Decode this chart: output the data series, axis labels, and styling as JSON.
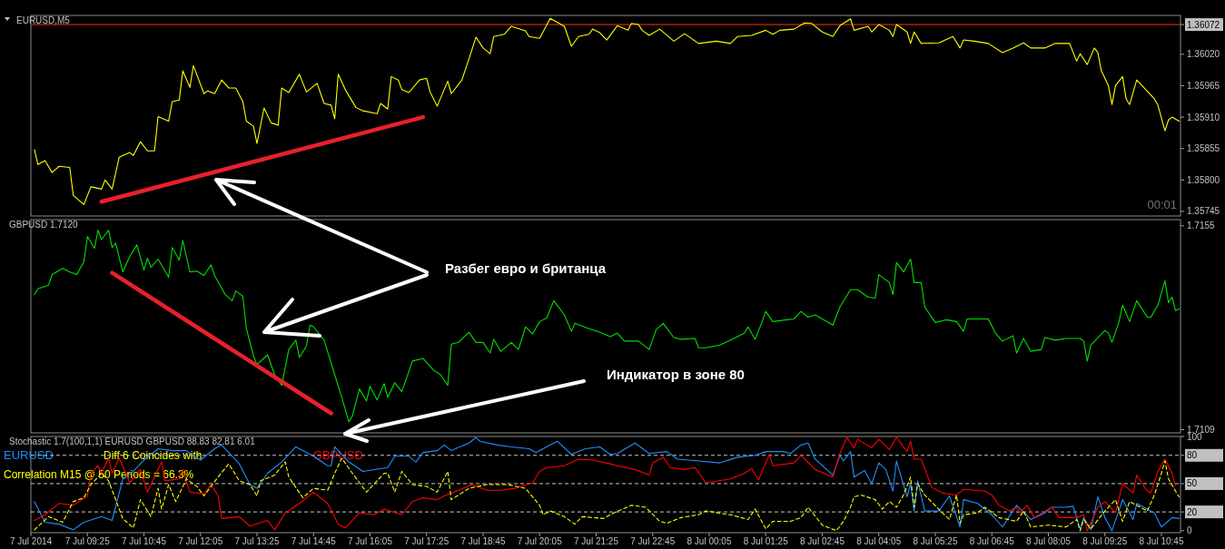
{
  "chart_data": [
    {
      "type": "line",
      "title": "EURUSD,M5",
      "xlim": [
        "2014-07-07T08:05",
        "2014-07-08T11:12"
      ],
      "ylim": [
        1.35737,
        1.36088
      ],
      "tick_labels": "y",
      "yticks": [
        1.35745,
        {
          "value": 1.358,
          "label": "1.35800"
        },
        1.35855,
        {
          "value": 1.3591,
          "label": "1.35910"
        },
        1.35965,
        {
          "value": 1.3602,
          "label": "1.36020"
        },
        1.36072
      ],
      "ref_lines": [
        {
          "axis": "y",
          "value": 1.36072,
          "color": "#ff3300"
        }
      ],
      "annotations": [
        "00:01"
      ],
      "series": [
        {
          "color": "#ffff00",
          "x": [
            "2014-07-07T08:10",
            "2014-07-07T08:15",
            "2014-07-07T08:25",
            "2014-07-07T08:35",
            "2014-07-07T08:45",
            "2014-07-07T09:00",
            "2014-07-07T09:05",
            "2014-07-07T09:20",
            "2014-07-07T09:30",
            "2014-07-07T09:45",
            "2014-07-07T09:50",
            "2014-07-07T10:00",
            "2014-07-07T10:10",
            "2014-07-07T10:25",
            "2014-07-07T10:30",
            "2014-07-07T10:40",
            "2014-07-07T10:50",
            "2014-07-07T11:00",
            "2014-07-07T11:05",
            "2014-07-07T11:20",
            "2014-07-07T11:25",
            "2014-07-07T11:35",
            "2014-07-07T11:40",
            "2014-07-07T11:50",
            "2014-07-07T11:55",
            "2014-07-07T12:10",
            "2014-07-07T12:15",
            "2014-07-07T12:25",
            "2014-07-07T12:35",
            "2014-07-07T12:45",
            "2014-07-07T12:55",
            "2014-07-07T13:05",
            "2014-07-07T13:10",
            "2014-07-07T13:20",
            "2014-07-07T13:25",
            "2014-07-07T13:35",
            "2014-07-07T13:45",
            "2014-07-07T13:55",
            "2014-07-07T14:00",
            "2014-07-07T14:10",
            "2014-07-07T14:25",
            "2014-07-07T14:35",
            "2014-07-07T14:50",
            "2014-07-07T15:00",
            "2014-07-07T15:10",
            "2014-07-07T15:15",
            "2014-07-07T15:20",
            "2014-07-07T15:30",
            "2014-07-07T15:45",
            "2014-07-07T15:55",
            "2014-07-07T16:15",
            "2014-07-07T16:20",
            "2014-07-07T16:30",
            "2014-07-07T16:35",
            "2014-07-07T16:45",
            "2014-07-07T16:50",
            "2014-07-07T17:00",
            "2014-07-07T17:15",
            "2014-07-07T17:25",
            "2014-07-07T17:30",
            "2014-07-07T17:40",
            "2014-07-07T17:55",
            "2014-07-07T18:00",
            "2014-07-07T18:15",
            "2014-07-07T18:25",
            "2014-07-07T18:35",
            "2014-07-07T18:45",
            "2014-07-07T18:55",
            "2014-07-07T19:00",
            "2014-07-07T19:15",
            "2014-07-07T19:25",
            "2014-07-07T19:45",
            "2014-07-07T19:50",
            "2014-07-07T20:05",
            "2014-07-07T20:20",
            "2014-07-07T20:40",
            "2014-07-07T20:50",
            "2014-07-07T21:00",
            "2014-07-07T21:15",
            "2014-07-07T21:20",
            "2014-07-07T21:30",
            "2014-07-07T21:40",
            "2014-07-07T21:55",
            "2014-07-07T22:10",
            "2014-07-07T22:15",
            "2014-07-07T22:25",
            "2014-07-07T22:30",
            "2014-07-07T22:40",
            "2014-07-07T22:55",
            "2014-07-07T23:15",
            "2014-07-07T23:30",
            "2014-07-07T23:50",
            "2014-07-08T00:15",
            "2014-07-08T00:35",
            "2014-07-08T00:45",
            "2014-07-08T01:05",
            "2014-07-08T01:25",
            "2014-07-08T01:35",
            "2014-07-08T01:45",
            "2014-07-08T02:05",
            "2014-07-08T02:20",
            "2014-07-08T02:30",
            "2014-07-08T02:45",
            "2014-07-08T03:00",
            "2014-07-08T03:10",
            "2014-07-08T03:25",
            "2014-07-08T03:30",
            "2014-07-08T03:50",
            "2014-07-08T03:55",
            "2014-07-08T04:05",
            "2014-07-08T04:20",
            "2014-07-08T04:25",
            "2014-07-08T04:30",
            "2014-07-08T04:45",
            "2014-07-08T04:50",
            "2014-07-08T04:55",
            "2014-07-08T05:05",
            "2014-07-08T05:30",
            "2014-07-08T05:50",
            "2014-07-08T06:00",
            "2014-07-08T06:05",
            "2014-07-08T06:20",
            "2014-07-08T06:40",
            "2014-07-08T07:00",
            "2014-07-08T07:15",
            "2014-07-08T07:30",
            "2014-07-08T07:40",
            "2014-07-08T08:00",
            "2014-07-08T08:15",
            "2014-07-08T08:35",
            "2014-07-08T08:45",
            "2014-07-08T08:50",
            "2014-07-08T09:00",
            "2014-07-08T09:10",
            "2014-07-08T09:15",
            "2014-07-08T09:20",
            "2014-07-08T09:30",
            "2014-07-08T09:35",
            "2014-07-08T09:40",
            "2014-07-08T09:50",
            "2014-07-08T09:55",
            "2014-07-08T10:00",
            "2014-07-08T10:10",
            "2014-07-08T10:35",
            "2014-07-08T10:40",
            "2014-07-08T10:50",
            "2014-07-08T10:55",
            "2014-07-08T11:00",
            "2014-07-08T11:10"
          ],
          "values": [
            1.35853,
            1.35827,
            1.35834,
            1.35813,
            1.35824,
            1.35822,
            1.35773,
            1.35757,
            1.35788,
            1.35784,
            1.358,
            1.35784,
            1.3584,
            1.35848,
            1.35843,
            1.35867,
            1.35851,
            1.35851,
            1.35911,
            1.35903,
            1.35937,
            1.3594,
            1.35991,
            1.35962,
            1.36,
            1.35951,
            1.35956,
            1.35951,
            1.35975,
            1.35961,
            1.35961,
            1.35937,
            1.35903,
            1.35894,
            1.35864,
            1.35926,
            1.359,
            1.35896,
            1.35961,
            1.35953,
            1.35985,
            1.35954,
            1.35969,
            1.35934,
            1.35931,
            1.35907,
            1.35985,
            1.35958,
            1.35927,
            1.35921,
            1.35916,
            1.35934,
            1.35924,
            1.35981,
            1.35975,
            1.35958,
            1.35953,
            1.35975,
            1.35978,
            1.35954,
            1.35929,
            1.35973,
            1.35951,
            1.35975,
            1.36012,
            1.3605,
            1.36031,
            1.36021,
            1.36051,
            1.36055,
            1.36069,
            1.36061,
            1.36051,
            1.36048,
            1.36083,
            1.36069,
            1.36034,
            1.36051,
            1.36055,
            1.36064,
            1.36058,
            1.36045,
            1.3607,
            1.36062,
            1.36074,
            1.36072,
            1.36062,
            1.36053,
            1.36064,
            1.36043,
            1.36056,
            1.36039,
            1.36043,
            1.36039,
            1.36051,
            1.36053,
            1.36062,
            1.36055,
            1.36062,
            1.36064,
            1.36075,
            1.36074,
            1.36059,
            1.36051,
            1.3607,
            1.36082,
            1.36062,
            1.36069,
            1.36059,
            1.36072,
            1.36062,
            1.36051,
            1.36072,
            1.36059,
            1.36039,
            1.36059,
            1.36039,
            1.3604,
            1.36051,
            1.36031,
            1.36045,
            1.36043,
            1.36039,
            1.36023,
            1.36031,
            1.3604,
            1.36031,
            1.36031,
            1.36039,
            1.36039,
            1.36008,
            1.36021,
            1.36002,
            1.36031,
            1.36023,
            1.35991,
            1.35965,
            1.35932,
            1.35965,
            1.35981,
            1.35942,
            1.35932,
            1.35975,
            1.35942,
            1.35931,
            1.35886,
            1.35905,
            1.3591,
            1.35903
          ]
        },
        {
          "color": "#e8202a",
          "x": [
            "2014-07-07T09:45",
            "2014-07-07T17:20"
          ],
          "values": [
            1.35762,
            1.3591
          ]
        }
      ]
    },
    {
      "type": "line",
      "title": "GBPUSD 1.7120",
      "xlim": [
        "2014-07-07T08:05",
        "2014-07-08T11:12"
      ],
      "ylim": [
        1.71083,
        1.71564
      ],
      "tick_labels": "y",
      "yticks": [
        1.7109,
        1.7155
      ],
      "annotations": [
        "Разбег евро и британца",
        "Индикатор в зоне 80"
      ],
      "series": [
        {
          "color": "#00e000",
          "x": [
            "2014-07-07T08:10",
            "2014-07-07T08:15",
            "2014-07-07T08:30",
            "2014-07-07T08:35",
            "2014-07-07T08:50",
            "2014-07-07T09:00",
            "2014-07-07T09:10",
            "2014-07-07T09:20",
            "2014-07-07T09:25",
            "2014-07-07T09:35",
            "2014-07-07T09:40",
            "2014-07-07T09:45",
            "2014-07-07T09:55",
            "2014-07-07T10:00",
            "2014-07-07T10:05",
            "2014-07-07T10:15",
            "2014-07-07T10:25",
            "2014-07-07T10:35",
            "2014-07-07T10:45",
            "2014-07-07T10:50",
            "2014-07-07T10:55",
            "2014-07-07T11:05",
            "2014-07-07T11:20",
            "2014-07-07T11:25",
            "2014-07-07T11:35",
            "2014-07-07T11:40",
            "2014-07-07T11:50",
            "2014-07-07T12:00",
            "2014-07-07T12:10",
            "2014-07-07T12:20",
            "2014-07-07T12:25",
            "2014-07-07T12:40",
            "2014-07-07T12:50",
            "2014-07-07T12:55",
            "2014-07-07T13:05",
            "2014-07-07T13:10",
            "2014-07-07T13:20",
            "2014-07-07T13:25",
            "2014-07-07T13:40",
            "2014-07-07T13:50",
            "2014-07-07T14:00",
            "2014-07-07T14:10",
            "2014-07-07T14:20",
            "2014-07-07T14:25",
            "2014-07-07T14:35",
            "2014-07-07T14:40",
            "2014-07-07T14:45",
            "2014-07-07T15:00",
            "2014-07-07T15:15",
            "2014-07-07T15:25",
            "2014-07-07T15:35",
            "2014-07-07T15:40",
            "2014-07-07T15:50",
            "2014-07-07T16:00",
            "2014-07-07T16:05",
            "2014-07-07T16:15",
            "2014-07-07T16:25",
            "2014-07-07T16:30",
            "2014-07-07T16:40",
            "2014-07-07T16:50",
            "2014-07-07T17:05",
            "2014-07-07T17:20",
            "2014-07-07T17:35",
            "2014-07-07T17:45",
            "2014-07-07T17:55",
            "2014-07-07T18:00",
            "2014-07-07T18:10",
            "2014-07-07T18:25",
            "2014-07-07T18:35",
            "2014-07-07T18:45",
            "2014-07-07T18:55",
            "2014-07-07T19:00",
            "2014-07-07T19:10",
            "2014-07-07T19:25",
            "2014-07-07T19:35",
            "2014-07-07T19:45",
            "2014-07-07T19:55",
            "2014-07-07T20:05",
            "2014-07-07T20:15",
            "2014-07-07T20:25",
            "2014-07-07T20:40",
            "2014-07-07T20:50",
            "2014-07-07T20:55",
            "2014-07-07T21:15",
            "2014-07-07T21:30",
            "2014-07-07T21:45",
            "2014-07-07T21:55",
            "2014-07-07T22:05",
            "2014-07-07T22:25",
            "2014-07-07T22:40",
            "2014-07-07T22:50",
            "2014-07-07T23:00",
            "2014-07-07T23:15",
            "2014-07-07T23:25",
            "2014-07-07T23:45",
            "2014-07-07T23:50",
            "2014-07-08T00:00",
            "2014-07-08T00:20",
            "2014-07-08T00:40",
            "2014-07-08T00:55",
            "2014-07-08T01:00",
            "2014-07-08T01:10",
            "2014-07-08T01:20",
            "2014-07-08T01:25",
            "2014-07-08T01:35",
            "2014-07-08T01:55",
            "2014-07-08T02:05",
            "2014-07-08T02:15",
            "2014-07-08T02:25",
            "2014-07-08T02:35",
            "2014-07-08T03:00",
            "2014-07-08T03:10",
            "2014-07-08T03:25",
            "2014-07-08T03:35",
            "2014-07-08T03:50",
            "2014-07-08T04:00",
            "2014-07-08T04:05",
            "2014-07-08T04:20",
            "2014-07-08T04:25",
            "2014-07-08T04:30",
            "2014-07-08T04:40",
            "2014-07-08T04:50",
            "2014-07-08T04:55",
            "2014-07-08T05:05",
            "2014-07-08T05:10",
            "2014-07-08T05:25",
            "2014-07-08T05:40",
            "2014-07-08T05:55",
            "2014-07-08T06:05",
            "2014-07-08T06:10",
            "2014-07-08T06:40",
            "2014-07-08T06:50",
            "2014-07-08T07:00",
            "2014-07-08T07:15",
            "2014-07-08T07:20",
            "2014-07-08T07:30",
            "2014-07-08T07:40",
            "2014-07-08T07:55",
            "2014-07-08T08:00",
            "2014-07-08T08:15",
            "2014-07-08T08:30",
            "2014-07-08T08:50",
            "2014-07-08T08:55",
            "2014-07-08T09:00",
            "2014-07-08T09:05",
            "2014-07-08T09:25",
            "2014-07-08T09:30",
            "2014-07-08T09:35",
            "2014-07-08T09:45",
            "2014-07-08T09:50",
            "2014-07-08T10:00",
            "2014-07-08T10:10",
            "2014-07-08T10:25",
            "2014-07-08T10:30",
            "2014-07-08T10:40",
            "2014-07-08T10:50",
            "2014-07-08T10:55",
            "2014-07-08T11:00",
            "2014-07-08T11:05",
            "2014-07-08T11:10"
          ],
          "values": [
            1.71395,
            1.71408,
            1.71416,
            1.7144,
            1.71454,
            1.71446,
            1.7144,
            1.71469,
            1.71526,
            1.71499,
            1.7154,
            1.71519,
            1.7154,
            1.71501,
            1.71511,
            1.71446,
            1.71481,
            1.71507,
            1.7145,
            1.71477,
            1.71456,
            1.71475,
            1.71434,
            1.71501,
            1.71473,
            1.71517,
            1.71446,
            1.71448,
            1.71438,
            1.71462,
            1.71438,
            1.71395,
            1.71381,
            1.71403,
            1.71391,
            1.71318,
            1.71257,
            1.71237,
            1.71259,
            1.71214,
            1.7119,
            1.71271,
            1.71292,
            1.71253,
            1.71279,
            1.71326,
            1.71322,
            1.71292,
            1.71214,
            1.71163,
            1.71108,
            1.71121,
            1.71182,
            1.71155,
            1.71188,
            1.71157,
            1.71194,
            1.71163,
            1.71196,
            1.71176,
            1.71245,
            1.71251,
            1.71224,
            1.71214,
            1.7119,
            1.71283,
            1.71287,
            1.7131,
            1.71287,
            1.71287,
            1.71263,
            1.71294,
            1.71267,
            1.71287,
            1.71271,
            1.71322,
            1.71306,
            1.71334,
            1.71342,
            1.71381,
            1.71349,
            1.71312,
            1.7133,
            1.71318,
            1.7131,
            1.713,
            1.71308,
            1.7129,
            1.7129,
            1.71271,
            1.71316,
            1.7133,
            1.71298,
            1.71294,
            1.71296,
            1.71275,
            1.71275,
            1.71281,
            1.71296,
            1.71308,
            1.71322,
            1.71294,
            1.71334,
            1.71357,
            1.71334,
            1.71338,
            1.7134,
            1.71357,
            1.71344,
            1.71349,
            1.71326,
            1.71367,
            1.71406,
            1.71406,
            1.71389,
            1.71387,
            1.7144,
            1.71422,
            1.71395,
            1.71467,
            1.71446,
            1.71475,
            1.71422,
            1.71422,
            1.71367,
            1.71332,
            1.71338,
            1.71334,
            1.71312,
            1.7134,
            1.7134,
            1.71308,
            1.7129,
            1.71302,
            1.71263,
            1.71296,
            1.71267,
            1.71271,
            1.71298,
            1.71292,
            1.71296,
            1.71296,
            1.7129,
            1.71245,
            1.71281,
            1.71314,
            1.71308,
            1.71287,
            1.71334,
            1.71371,
            1.71334,
            1.71381,
            1.71344,
            1.71344,
            1.71371,
            1.71426,
            1.71377,
            1.71389,
            1.71359,
            1.71363
          ]
        },
        {
          "color": "#e8202a",
          "x": [
            "2014-07-07T10:00",
            "2014-07-07T15:10"
          ],
          "values": [
            1.71444,
            1.71127
          ]
        }
      ]
    },
    {
      "type": "line",
      "title": "Stochastic 1.7(100,1,1) EURUSD GBPUSD 88.83 82.81 6.01",
      "xlim": [
        "2014-07-07T08:05",
        "2014-07-08T11:12"
      ],
      "ylim": [
        -2,
        100
      ],
      "yticks": [
        0,
        20,
        50,
        80,
        100
      ],
      "legend": "top left",
      "xticks": [
        {
          "value": "2014-07-07T08:05",
          "label": "7 Jul 2014"
        },
        {
          "value": "2014-07-07T09:25",
          "label": "7 Jul 09:25"
        },
        {
          "value": "2014-07-07T10:45",
          "label": "7 Jul 10:45"
        },
        {
          "value": "2014-07-07T12:05",
          "label": "7 Jul 12:05"
        },
        {
          "value": "2014-07-07T13:25",
          "label": "7 Jul 13:25"
        },
        {
          "value": "2014-07-07T14:45",
          "label": "7 Jul 14:45"
        },
        {
          "value": "2014-07-07T16:05",
          "label": "7 Jul 16:05"
        },
        {
          "value": "2014-07-07T17:25",
          "label": "7 Jul 17:25"
        },
        {
          "value": "2014-07-07T18:45",
          "label": "7 Jul 18:45"
        },
        {
          "value": "2014-07-07T20:05",
          "label": "7 Jul 20:05"
        },
        {
          "value": "2014-07-07T21:25",
          "label": "7 Jul 21:25"
        },
        {
          "value": "2014-07-07T22:45",
          "label": "7 Jul 22:45"
        },
        {
          "value": "2014-07-08T00:05",
          "label": "8 Jul 00:05"
        },
        {
          "value": "2014-07-08T01:25",
          "label": "8 Jul 01:25"
        },
        {
          "value": "2014-07-08T02:45",
          "label": "8 Jul 02:45"
        },
        {
          "value": "2014-07-08T04:05",
          "label": "8 Jul 04:05"
        },
        {
          "value": "2014-07-08T05:25",
          "label": "8 Jul 05:25"
        },
        {
          "value": "2014-07-08T06:45",
          "label": "8 Jul 06:45"
        },
        {
          "value": "2014-07-08T08:05",
          "label": "8 Jul 08:05"
        },
        {
          "value": "2014-07-08T09:25",
          "label": "8 Jul 09:25"
        },
        {
          "value": "2014-07-08T10:45",
          "label": "8 Jul 10:45"
        }
      ],
      "ref_lines": [
        {
          "axis": "y",
          "value": 20,
          "color": "#c8c8c8",
          "line_style": "dashed"
        },
        {
          "axis": "y",
          "value": 50,
          "color": "#c8c8c8",
          "line_style": "dashed"
        },
        {
          "axis": "y",
          "value": 80,
          "color": "#c8c8c8",
          "line_style": "dashed"
        }
      ],
      "annotations": [
        "Diff 6 Coincides with",
        "Correlation M15 @ 50 Periods = 66.3%"
      ],
      "series": [
        {
          "name": "EURUSD",
          "color": "#1e90ff",
          "x": [
            "2014-07-07T08:10",
            "2014-07-07T08:25",
            "2014-07-07T08:45",
            "2014-07-07T09:05",
            "2014-07-07T09:20",
            "2014-07-07T09:45",
            "2014-07-07T10:00",
            "2014-07-07T10:15",
            "2014-07-07T10:30",
            "2014-07-07T10:45",
            "2014-07-07T11:05",
            "2014-07-07T11:25",
            "2014-07-07T11:45",
            "2014-07-07T12:05",
            "2014-07-07T12:25",
            "2014-07-07T12:35",
            "2014-07-07T13:00",
            "2014-07-07T13:15",
            "2014-07-07T13:25",
            "2014-07-07T13:40",
            "2014-07-07T14:00",
            "2014-07-07T14:20",
            "2014-07-07T14:45",
            "2014-07-07T15:05",
            "2014-07-07T15:10",
            "2014-07-07T15:15",
            "2014-07-07T15:35",
            "2014-07-07T15:55",
            "2014-07-07T16:30",
            "2014-07-07T16:40",
            "2014-07-07T17:00",
            "2014-07-07T17:10",
            "2014-07-07T17:20",
            "2014-07-07T17:40",
            "2014-07-07T17:50",
            "2014-07-07T18:00",
            "2014-07-07T18:25",
            "2014-07-07T18:35",
            "2014-07-07T18:40",
            "2014-07-07T19:05",
            "2014-07-07T19:25",
            "2014-07-07T19:50",
            "2014-07-07T20:00",
            "2014-07-07T20:20",
            "2014-07-07T20:30",
            "2014-07-07T20:50",
            "2014-07-07T21:10",
            "2014-07-07T21:30",
            "2014-07-07T21:45",
            "2014-07-07T21:55",
            "2014-07-07T22:20",
            "2014-07-07T22:40",
            "2014-07-07T23:05",
            "2014-07-07T23:20",
            "2014-07-07T23:50",
            "2014-07-08T00:20",
            "2014-07-08T00:45",
            "2014-07-08T01:10",
            "2014-07-08T01:25",
            "2014-07-08T01:50",
            "2014-07-08T02:00",
            "2014-07-08T02:15",
            "2014-07-08T02:25",
            "2014-07-08T02:35",
            "2014-07-08T03:00",
            "2014-07-08T03:10",
            "2014-07-08T03:15",
            "2014-07-08T03:25",
            "2014-07-08T03:30",
            "2014-07-08T03:45",
            "2014-07-08T03:55",
            "2014-07-08T04:05",
            "2014-07-08T04:15",
            "2014-07-08T04:25",
            "2014-07-08T04:30",
            "2014-07-08T04:45",
            "2014-07-08T04:50",
            "2014-07-08T04:55",
            "2014-07-08T05:00",
            "2014-07-08T05:10",
            "2014-07-08T05:30",
            "2014-07-08T05:45",
            "2014-07-08T06:00",
            "2014-07-08T06:05",
            "2014-07-08T06:25",
            "2014-07-08T06:45",
            "2014-07-08T07:00",
            "2014-07-08T07:20",
            "2014-07-08T07:40",
            "2014-07-08T08:00",
            "2014-07-08T08:10",
            "2014-07-08T08:30",
            "2014-07-08T08:40",
            "2014-07-08T08:50",
            "2014-07-08T08:55",
            "2014-07-08T09:05",
            "2014-07-08T09:15",
            "2014-07-08T09:25",
            "2014-07-08T09:35",
            "2014-07-08T09:50",
            "2014-07-08T10:05",
            "2014-07-08T10:10",
            "2014-07-08T10:35",
            "2014-07-08T10:45",
            "2014-07-08T11:00",
            "2014-07-08T11:10"
          ],
          "values": [
            31,
            9,
            7,
            1,
            9,
            15,
            11,
            55,
            63,
            75,
            87,
            85,
            85,
            75,
            87,
            91,
            71,
            49,
            45,
            61,
            73,
            89,
            79,
            69,
            69,
            89,
            73,
            63,
            67,
            79,
            79,
            73,
            83,
            85,
            91,
            85,
            93,
            99,
            95,
            91,
            89,
            87,
            83,
            91,
            95,
            81,
            87,
            89,
            81,
            82,
            93,
            82,
            84,
            76,
            74,
            72,
            78,
            80,
            84,
            84,
            82,
            91,
            93,
            76,
            59,
            80,
            74,
            84,
            57,
            64,
            50,
            72,
            65,
            42,
            74,
            36,
            50,
            21,
            53,
            21,
            21,
            37,
            4,
            33,
            29,
            17,
            4,
            27,
            12,
            19,
            25,
            25,
            26,
            2,
            14,
            1,
            36,
            14,
            0,
            33,
            12,
            29,
            19,
            4,
            14,
            13
          ]
        },
        {
          "name": "GBPUSD",
          "color": "#ff0000",
          "x": [
            "2014-07-07T08:10",
            "2014-07-07T08:25",
            "2014-07-07T08:45",
            "2014-07-07T09:05",
            "2014-07-07T09:25",
            "2014-07-07T09:30",
            "2014-07-07T09:40",
            "2014-07-07T09:45",
            "2014-07-07T09:55",
            "2014-07-07T10:00",
            "2014-07-07T10:10",
            "2014-07-07T10:25",
            "2014-07-07T10:40",
            "2014-07-07T10:50",
            "2014-07-07T11:10",
            "2014-07-07T11:15",
            "2014-07-07T11:35",
            "2014-07-07T11:40",
            "2014-07-07T11:50",
            "2014-07-07T12:10",
            "2014-07-07T12:20",
            "2014-07-07T12:30",
            "2014-07-07T12:35",
            "2014-07-07T13:00",
            "2014-07-07T13:15",
            "2014-07-07T13:40",
            "2014-07-07T13:50",
            "2014-07-07T14:05",
            "2014-07-07T14:25",
            "2014-07-07T14:45",
            "2014-07-07T15:05",
            "2014-07-07T15:20",
            "2014-07-07T15:30",
            "2014-07-07T15:50",
            "2014-07-07T16:10",
            "2014-07-07T16:25",
            "2014-07-07T16:50",
            "2014-07-07T17:05",
            "2014-07-07T17:20",
            "2014-07-07T17:40",
            "2014-07-07T17:50",
            "2014-07-07T18:10",
            "2014-07-07T18:30",
            "2014-07-07T18:50",
            "2014-07-07T19:10",
            "2014-07-07T19:30",
            "2014-07-07T19:55",
            "2014-07-07T20:05",
            "2014-07-07T20:15",
            "2014-07-07T20:40",
            "2014-07-07T21:00",
            "2014-07-07T21:20",
            "2014-07-07T21:45",
            "2014-07-07T21:55",
            "2014-07-07T22:20",
            "2014-07-07T22:40",
            "2014-07-07T22:45",
            "2014-07-07T23:00",
            "2014-07-07T23:10",
            "2014-07-07T23:30",
            "2014-07-07T23:45",
            "2014-07-08T00:00",
            "2014-07-08T00:35",
            "2014-07-08T00:55",
            "2014-07-08T01:05",
            "2014-07-08T01:15",
            "2014-07-08T01:30",
            "2014-07-08T01:35",
            "2014-07-08T02:05",
            "2014-07-08T02:15",
            "2014-07-08T02:35",
            "2014-07-08T03:00",
            "2014-07-08T03:10",
            "2014-07-08T03:20",
            "2014-07-08T03:30",
            "2014-07-08T03:35",
            "2014-07-08T03:55",
            "2014-07-08T04:05",
            "2014-07-08T04:20",
            "2014-07-08T04:30",
            "2014-07-08T04:45",
            "2014-07-08T04:50",
            "2014-07-08T04:55",
            "2014-07-08T05:05",
            "2014-07-08T05:20",
            "2014-07-08T05:35",
            "2014-07-08T05:55",
            "2014-07-08T06:05",
            "2014-07-08T06:35",
            "2014-07-08T06:45",
            "2014-07-08T06:55",
            "2014-07-08T07:10",
            "2014-07-08T07:20",
            "2014-07-08T07:25",
            "2014-07-08T07:35",
            "2014-07-08T07:45",
            "2014-07-08T08:10",
            "2014-07-08T08:20",
            "2014-07-08T08:45",
            "2014-07-08T08:55",
            "2014-07-08T09:00",
            "2014-07-08T09:15",
            "2014-07-08T09:25",
            "2014-07-08T09:40",
            "2014-07-08T09:50",
            "2014-07-08T10:05",
            "2014-07-08T10:10",
            "2014-07-08T10:25",
            "2014-07-08T10:30",
            "2014-07-08T10:40",
            "2014-07-08T10:50",
            "2014-07-08T11:00",
            "2014-07-08T11:05"
          ],
          "values": [
            11,
            17,
            29,
            27,
            37,
            61,
            69,
            61,
            77,
            61,
            77,
            51,
            65,
            41,
            73,
            53,
            55,
            65,
            41,
            39,
            49,
            37,
            13,
            15,
            5,
            11,
            1,
            19,
            29,
            41,
            29,
            7,
            3,
            19,
            17,
            23,
            17,
            31,
            35,
            33,
            37,
            43,
            49,
            43,
            43,
            45,
            51,
            63,
            67,
            69,
            76,
            75,
            71,
            69,
            65,
            59,
            72,
            78,
            67,
            65,
            67,
            51,
            55,
            61,
            66,
            54,
            81,
            69,
            72,
            80,
            65,
            57,
            82,
            99,
            88,
            97,
            88,
            97,
            86,
            99,
            84,
            95,
            76,
            76,
            46,
            40,
            38,
            44,
            42,
            38,
            27,
            21,
            25,
            19,
            27,
            14,
            25,
            14,
            14,
            17,
            0,
            25,
            31,
            19,
            50,
            40,
            59,
            42,
            40,
            63,
            76,
            61,
            48
          ]
        },
        {
          "color": "#ffff00",
          "line_style": "dashed",
          "x": [
            "2014-07-07T08:10",
            "2014-07-07T08:30",
            "2014-07-07T08:50",
            "2014-07-07T09:05",
            "2014-07-07T09:20",
            "2014-07-07T09:30",
            "2014-07-07T09:45",
            "2014-07-07T09:55",
            "2014-07-07T10:15",
            "2014-07-07T10:30",
            "2014-07-07T10:40",
            "2014-07-07T10:55",
            "2014-07-07T11:05",
            "2014-07-07T11:10",
            "2014-07-07T11:20",
            "2014-07-07T11:30",
            "2014-07-07T11:45",
            "2014-07-07T12:00",
            "2014-07-07T12:10",
            "2014-07-07T12:30",
            "2014-07-07T12:45",
            "2014-07-07T13:00",
            "2014-07-07T13:15",
            "2014-07-07T13:25",
            "2014-07-07T13:30",
            "2014-07-07T13:50",
            "2014-07-07T14:05",
            "2014-07-07T14:10",
            "2014-07-07T14:30",
            "2014-07-07T14:45",
            "2014-07-07T15:05",
            "2014-07-07T15:15",
            "2014-07-07T15:25",
            "2014-07-07T15:40",
            "2014-07-07T16:00",
            "2014-07-07T16:25",
            "2014-07-07T16:30",
            "2014-07-07T16:40",
            "2014-07-07T16:50",
            "2014-07-07T17:05",
            "2014-07-07T17:25",
            "2014-07-07T17:40",
            "2014-07-07T17:55",
            "2014-07-07T18:00",
            "2014-07-07T18:25",
            "2014-07-07T18:50",
            "2014-07-07T19:20",
            "2014-07-07T19:45",
            "2014-07-07T20:05",
            "2014-07-07T20:10",
            "2014-07-07T20:20",
            "2014-07-07T20:40",
            "2014-07-07T20:55",
            "2014-07-07T21:05",
            "2014-07-07T21:35",
            "2014-07-07T21:50",
            "2014-07-07T22:15",
            "2014-07-07T22:35",
            "2014-07-07T22:55",
            "2014-07-07T23:05",
            "2014-07-07T23:25",
            "2014-07-07T23:50",
            "2014-07-08T00:00",
            "2014-07-08T00:35",
            "2014-07-08T01:00",
            "2014-07-08T01:10",
            "2014-07-08T01:25",
            "2014-07-08T01:35",
            "2014-07-08T02:00",
            "2014-07-08T02:15",
            "2014-07-08T02:25",
            "2014-07-08T02:45",
            "2014-07-08T03:05",
            "2014-07-08T03:15",
            "2014-07-08T03:25",
            "2014-07-08T03:30",
            "2014-07-08T03:40",
            "2014-07-08T04:00",
            "2014-07-08T04:10",
            "2014-07-08T04:20",
            "2014-07-08T04:30",
            "2014-07-08T04:40",
            "2014-07-08T04:50",
            "2014-07-08T04:55",
            "2014-07-08T05:00",
            "2014-07-08T05:10",
            "2014-07-08T05:35",
            "2014-07-08T05:45",
            "2014-07-08T05:55",
            "2014-07-08T06:00",
            "2014-07-08T06:05",
            "2014-07-08T06:25",
            "2014-07-08T06:35",
            "2014-07-08T06:55",
            "2014-07-08T07:20",
            "2014-07-08T07:30",
            "2014-07-08T07:40",
            "2014-07-08T08:05",
            "2014-07-08T08:30",
            "2014-07-08T08:45",
            "2014-07-08T08:50",
            "2014-07-08T08:55",
            "2014-07-08T09:05",
            "2014-07-08T09:25",
            "2014-07-08T09:40",
            "2014-07-08T09:50",
            "2014-07-08T10:00",
            "2014-07-08T10:25",
            "2014-07-08T10:35",
            "2014-07-08T10:45",
            "2014-07-08T10:50",
            "2014-07-08T10:55",
            "2014-07-08T11:05",
            "2014-07-08T11:10"
          ],
          "values": [
            1,
            15,
            9,
            31,
            35,
            49,
            61,
            53,
            13,
            3,
            33,
            15,
            45,
            23,
            49,
            31,
            55,
            47,
            37,
            57,
            71,
            53,
            49,
            37,
            53,
            59,
            73,
            57,
            35,
            45,
            43,
            61,
            77,
            61,
            41,
            61,
            61,
            41,
            63,
            49,
            47,
            41,
            63,
            33,
            45,
            49,
            49,
            45,
            27,
            17,
            21,
            15,
            7,
            15,
            13,
            19,
            27,
            25,
            10,
            8,
            14,
            17,
            21,
            17,
            12,
            23,
            2,
            10,
            10,
            14,
            25,
            6,
            0,
            10,
            25,
            36,
            38,
            33,
            23,
            31,
            25,
            38,
            57,
            25,
            50,
            38,
            19,
            12,
            38,
            8,
            17,
            19,
            25,
            14,
            10,
            21,
            4,
            6,
            4,
            12,
            0,
            12,
            2,
            21,
            33,
            10,
            31,
            21,
            38,
            61,
            74,
            55,
            42,
            36
          ]
        }
      ]
    }
  ]
}
